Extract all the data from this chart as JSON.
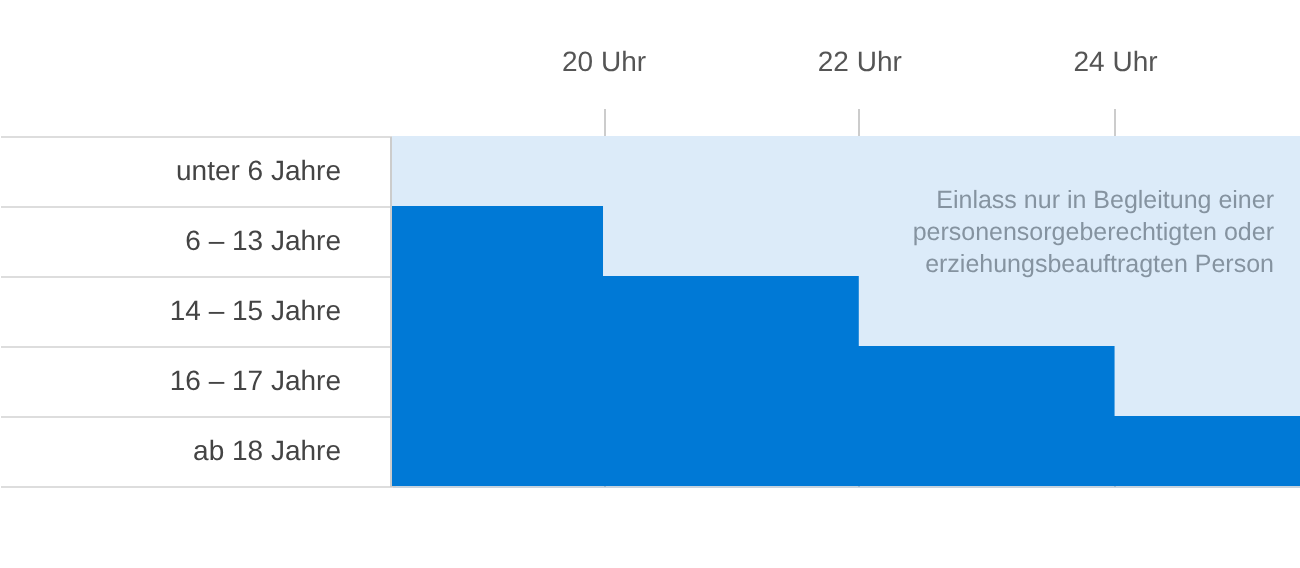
{
  "chart_data": {
    "type": "bar",
    "orientation": "horizontal",
    "categories": [
      "unter 6 Jahre",
      "6 – 13 Jahre",
      "14 – 15 Jahre",
      "16 – 17 Jahre",
      "ab 18 Jahre"
    ],
    "values": [
      null,
      20,
      22,
      24,
      25.45
    ],
    "color": "#0079d6",
    "xlim": [
      18.35,
      25.45
    ],
    "xticks": [
      {
        "value": 20,
        "label": "20 Uhr"
      },
      {
        "value": 22,
        "label": "22 Uhr"
      },
      {
        "value": 24,
        "label": "24 Uhr"
      }
    ],
    "bands": [
      {
        "axis": "x",
        "from": 18.35,
        "to": 25.45,
        "color": "#dcebf9",
        "label": "Einlass nur in Begleitung einer\npersonensorgeberechtigten oder\nerziehungsbeauftragten Person"
      }
    ],
    "grid": true
  }
}
